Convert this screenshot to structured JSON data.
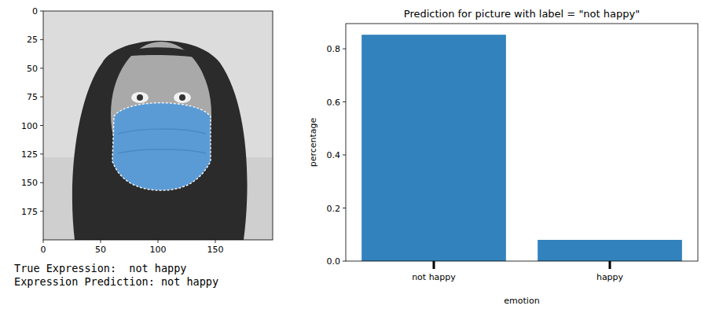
{
  "chart_data": [
    {
      "type": "image",
      "xlim": [
        0,
        200
      ],
      "ylim": [
        200,
        0
      ],
      "xticks": [
        0,
        50,
        100,
        150
      ],
      "yticks": [
        0,
        25,
        50,
        75,
        100,
        125,
        150,
        175
      ],
      "annotations": [
        "True Expression:  not happy",
        "Expression Prediction: not happy"
      ]
    },
    {
      "type": "bar",
      "title": "Prediction for picture with label = \"not happy\"",
      "x_label": "emotion",
      "y_label": "percentage",
      "categories": [
        "not happy",
        "happy"
      ],
      "values": [
        0.853,
        0.08
      ],
      "color": "#3182bd",
      "ylim": [
        0,
        0.895
      ],
      "yticks": [
        {
          "value": 0,
          "label": "0.0"
        },
        0.2,
        0.4,
        0.6,
        0.8
      ]
    }
  ]
}
